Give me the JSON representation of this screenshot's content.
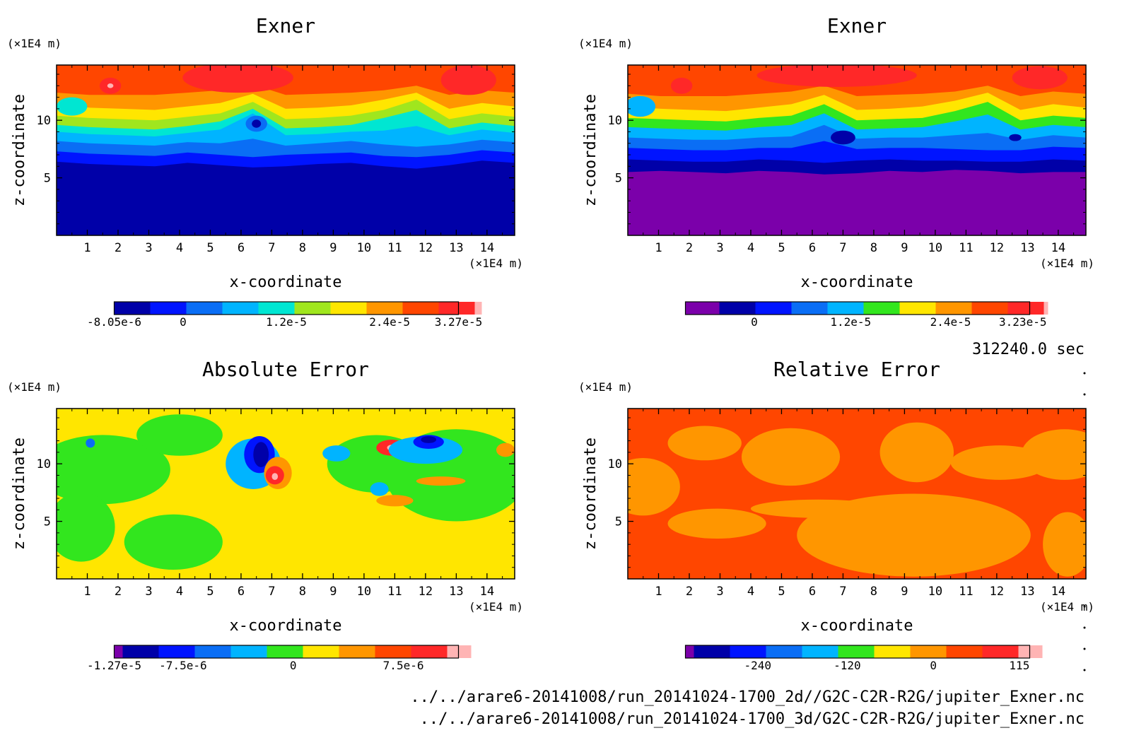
{
  "colors": {
    "purple": "#7b00aa",
    "navy": "#0000a8",
    "blue": "#0014ff",
    "azure": "#0a6ef5",
    "sky": "#00b4ff",
    "cyan": "#00e6d2",
    "green": "#32e61e",
    "lime": "#a0e61e",
    "yellow": "#ffe600",
    "orange": "#ff9600",
    "redorange": "#ff4600",
    "red": "#ff2828",
    "pink": "#ff3c46",
    "lightpink": "#ffb4b4"
  },
  "timestamp": "312240.0 sec",
  "files": [
    "../../arare6-20141008/run_20141024-1700_2d//G2C-C2R-R2G/jupiter_Exner.nc",
    "../../arare6-20141008/run_20141024-1700_3d/G2C-C2R-R2G/jupiter_Exner.nc"
  ],
  "chart_data": [
    {
      "type": "heatmap",
      "title": "Exner",
      "xlabel": "x-coordinate",
      "ylabel": "z-coordinate",
      "x_unit": "(×1E4 m)",
      "y_unit": "(×1E4 m)",
      "x_ticks": [
        "1",
        "2",
        "3",
        "4",
        "5",
        "6",
        "7",
        "8",
        "9",
        "10",
        "11",
        "12",
        "13",
        "14"
      ],
      "y_ticks": [
        "5",
        "10"
      ],
      "xlim": [
        0,
        14.9
      ],
      "ylim": [
        0,
        14.8
      ],
      "colorbar": {
        "colors": [
          "navy",
          "blue",
          "azure",
          "sky",
          "cyan",
          "lime",
          "yellow",
          "orange",
          "redorange",
          "red",
          "lightpink"
        ],
        "tick_labels": [
          "-8.05e-6",
          "0",
          "1.2e-5",
          "2.4e-5",
          "3.27e-5"
        ],
        "tick_positions": [
          0,
          0.2,
          0.5,
          0.8,
          1.0
        ]
      },
      "field": "exner_a",
      "bands": [
        {
          "color": "navy",
          "top": [
            6.4,
            6.2,
            6.1,
            6.0,
            6.3,
            6.1,
            5.9,
            6.0,
            6.2,
            6.3,
            6.0,
            5.8,
            6.1,
            6.5,
            6.3
          ]
        },
        {
          "color": "blue",
          "top": [
            7.3,
            7.1,
            7.0,
            6.9,
            7.2,
            7.0,
            6.8,
            7.0,
            7.1,
            7.2,
            6.9,
            6.8,
            7.0,
            7.4,
            7.2
          ]
        },
        {
          "color": "azure",
          "top": [
            8.2,
            8.0,
            7.9,
            7.8,
            8.1,
            8.0,
            8.4,
            7.8,
            8.0,
            8.2,
            7.9,
            7.7,
            7.9,
            8.3,
            8.1
          ]
        },
        {
          "color": "sky",
          "top": [
            9.0,
            8.8,
            8.7,
            8.6,
            8.9,
            9.2,
            10.6,
            8.7,
            8.8,
            9.0,
            9.1,
            9.5,
            8.7,
            9.2,
            8.9
          ]
        },
        {
          "color": "cyan",
          "top": [
            9.6,
            9.4,
            9.3,
            9.2,
            9.5,
            9.9,
            11.0,
            9.3,
            9.4,
            9.6,
            10.2,
            10.9,
            9.3,
            9.8,
            9.5
          ]
        },
        {
          "color": "lime",
          "top": [
            10.4,
            10.2,
            10.1,
            10.0,
            10.3,
            10.6,
            11.6,
            10.1,
            10.2,
            10.4,
            10.9,
            11.8,
            10.1,
            10.6,
            10.3
          ]
        },
        {
          "color": "yellow",
          "top": [
            11.3,
            11.1,
            11.0,
            10.9,
            11.2,
            11.5,
            12.3,
            11.0,
            11.1,
            11.3,
            11.8,
            12.4,
            11.0,
            11.5,
            11.2
          ]
        },
        {
          "color": "orange",
          "top": [
            12.4,
            12.2,
            12.2,
            12.2,
            12.4,
            12.6,
            13.1,
            12.2,
            12.3,
            12.4,
            12.6,
            13.0,
            12.2,
            12.6,
            12.4
          ]
        },
        {
          "color": "redorange",
          "top": [
            14.8,
            14.8,
            14.8,
            14.8,
            14.8,
            14.8,
            14.8,
            14.8,
            14.8,
            14.8,
            14.8,
            14.8,
            14.8,
            14.8,
            14.8
          ]
        }
      ]
    },
    {
      "type": "heatmap",
      "title": "Exner",
      "xlabel": "x-coordinate",
      "ylabel": "z-coordinate",
      "x_unit": "(×1E4 m)",
      "y_unit": "(×1E4 m)",
      "x_ticks": [
        "1",
        "2",
        "3",
        "4",
        "5",
        "6",
        "7",
        "8",
        "9",
        "10",
        "11",
        "12",
        "13",
        "14"
      ],
      "y_ticks": [
        "5",
        "10"
      ],
      "xlim": [
        0,
        14.9
      ],
      "ylim": [
        0,
        14.8
      ],
      "colorbar": {
        "colors": [
          "purple",
          "navy",
          "blue",
          "azure",
          "sky",
          "green",
          "yellow",
          "orange",
          "redorange",
          "red",
          "lightpink"
        ],
        "tick_labels": [
          "0",
          "1.2e-5",
          "2.4e-5",
          "3.23e-5"
        ],
        "tick_positions": [
          0.2,
          0.48,
          0.77,
          0.98
        ]
      },
      "field": "exner_b",
      "bands": [
        {
          "color": "purple",
          "top": [
            5.5,
            5.6,
            5.5,
            5.4,
            5.6,
            5.5,
            5.3,
            5.4,
            5.6,
            5.5,
            5.7,
            5.6,
            5.4,
            5.5,
            5.5
          ]
        },
        {
          "color": "navy",
          "top": [
            6.6,
            6.5,
            6.4,
            6.4,
            6.6,
            6.5,
            6.3,
            6.5,
            6.6,
            6.5,
            6.5,
            6.4,
            6.4,
            6.6,
            6.5
          ]
        },
        {
          "color": "blue",
          "top": [
            7.6,
            7.5,
            7.4,
            7.4,
            7.6,
            7.6,
            8.2,
            7.5,
            7.6,
            7.6,
            7.5,
            7.4,
            7.4,
            7.7,
            7.6
          ]
        },
        {
          "color": "azure",
          "top": [
            8.5,
            8.4,
            8.3,
            8.3,
            8.5,
            8.6,
            9.6,
            8.4,
            8.5,
            8.5,
            8.7,
            8.9,
            8.3,
            8.7,
            8.5
          ]
        },
        {
          "color": "sky",
          "top": [
            9.4,
            9.3,
            9.2,
            9.1,
            9.4,
            9.6,
            10.6,
            9.2,
            9.3,
            9.4,
            9.9,
            10.5,
            9.2,
            9.6,
            9.4
          ]
        },
        {
          "color": "green",
          "top": [
            10.2,
            10.1,
            10.0,
            9.9,
            10.2,
            10.4,
            11.4,
            10.0,
            10.1,
            10.2,
            10.8,
            11.6,
            10.0,
            10.4,
            10.2
          ]
        },
        {
          "color": "yellow",
          "top": [
            11.2,
            11.0,
            10.9,
            10.8,
            11.1,
            11.4,
            12.2,
            10.9,
            11.0,
            11.2,
            11.7,
            12.4,
            10.9,
            11.4,
            11.1
          ]
        },
        {
          "color": "orange",
          "top": [
            12.3,
            12.1,
            12.1,
            12.1,
            12.3,
            12.5,
            13.0,
            12.1,
            12.2,
            12.3,
            12.5,
            13.0,
            12.1,
            12.5,
            12.3
          ]
        },
        {
          "color": "redorange",
          "top": [
            14.8,
            14.8,
            14.8,
            14.8,
            14.8,
            14.8,
            14.8,
            14.8,
            14.8,
            14.8,
            14.8,
            14.8,
            14.8,
            14.8,
            14.8
          ]
        }
      ]
    },
    {
      "type": "heatmap",
      "title": "Absolute Error",
      "xlabel": "x-coordinate",
      "ylabel": "z-coordinate",
      "x_unit": "(×1E4 m)",
      "y_unit": "(×1E4 m)",
      "x_ticks": [
        "1",
        "2",
        "3",
        "4",
        "5",
        "6",
        "7",
        "8",
        "9",
        "10",
        "11",
        "12",
        "13",
        "14"
      ],
      "y_ticks": [
        "5",
        "10"
      ],
      "xlim": [
        0,
        14.9
      ],
      "ylim": [
        0,
        14.8
      ],
      "colorbar": {
        "colors": [
          "purple",
          "navy",
          "blue",
          "azure",
          "sky",
          "green",
          "yellow",
          "orange",
          "redorange",
          "red",
          "lightpink"
        ],
        "tick_labels": [
          "-1.27e-5",
          "-7.5e-6",
          "0",
          "7.5e-6"
        ],
        "tick_positions": [
          0.0,
          0.2,
          0.52,
          0.84
        ]
      },
      "field": "abs_error",
      "bands": [
        {
          "color": "yellow",
          "top": [
            14.8,
            14.8,
            14.8,
            14.8,
            14.8,
            14.8,
            14.8,
            14.8,
            14.8,
            14.8,
            14.8,
            14.8,
            14.8,
            14.8,
            14.8
          ]
        }
      ]
    },
    {
      "type": "heatmap",
      "title": "Relative Error",
      "xlabel": "x-coordinate",
      "ylabel": "z-coordinate",
      "x_unit": "(×1E4 m)",
      "y_unit": "(×1E4 m)",
      "x_ticks": [
        "1",
        "2",
        "3",
        "4",
        "5",
        "6",
        "7",
        "8",
        "9",
        "10",
        "11",
        "12",
        "13",
        "14"
      ],
      "y_ticks": [
        "5",
        "10"
      ],
      "xlim": [
        0,
        14.9
      ],
      "ylim": [
        0,
        14.8
      ],
      "colorbar": {
        "colors": [
          "purple",
          "navy",
          "blue",
          "azure",
          "sky",
          "green",
          "yellow",
          "orange",
          "redorange",
          "red",
          "lightpink"
        ],
        "tick_labels": [
          "-240",
          "-120",
          "0",
          "115"
        ],
        "tick_positions": [
          0.21,
          0.47,
          0.72,
          0.97
        ]
      },
      "field": "rel_error",
      "bands": [
        {
          "color": "redorange",
          "top": [
            14.8,
            14.8,
            14.8,
            14.8,
            14.8,
            14.8,
            14.8,
            14.8,
            14.8,
            14.8,
            14.8,
            14.8,
            14.8,
            14.8,
            14.8
          ]
        }
      ]
    }
  ]
}
